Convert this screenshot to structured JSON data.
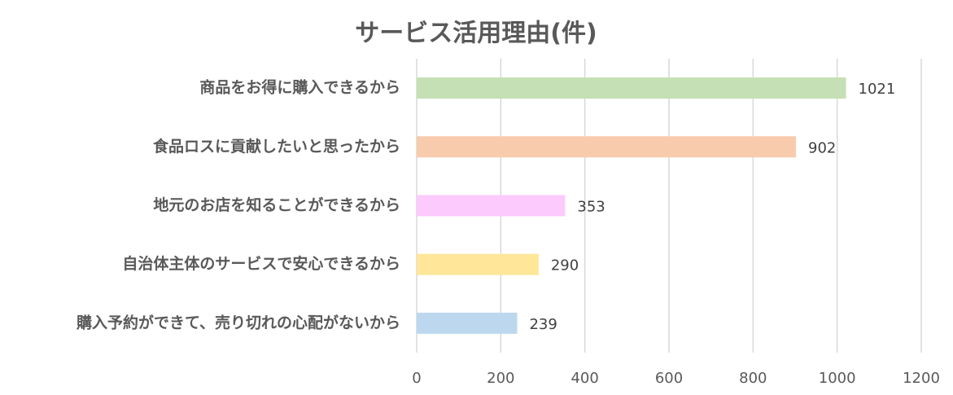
{
  "chart_data": {
    "type": "bar",
    "orientation": "horizontal",
    "title": "サービス活用理由(件)",
    "categories": [
      "商品をお得に購入できるから",
      "食品ロスに貢献したいと思ったから",
      "地元のお店を知ることができるから",
      "自治体主体のサービスで安心できるから",
      "購入予約ができて、売り切れの心配がないから"
    ],
    "values": [
      1021,
      902,
      353,
      290,
      239
    ],
    "colors": [
      "#c5e0b4",
      "#f8cbad",
      "#fccafc",
      "#ffe699",
      "#bdd7ee"
    ],
    "xlim": [
      0,
      1200
    ],
    "xticks": [
      0,
      200,
      400,
      600,
      800,
      1000,
      1200
    ],
    "grid": true
  }
}
